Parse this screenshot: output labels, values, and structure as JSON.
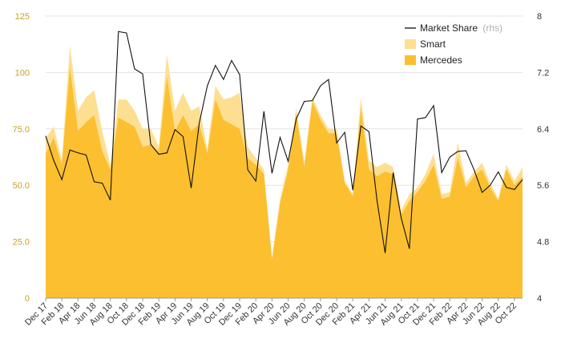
{
  "chart_data": {
    "type": "area",
    "title": "",
    "xlabel": "",
    "ylabel": "",
    "ylim": [
      0,
      125
    ],
    "y2lim": [
      4,
      8
    ],
    "y_ticks": [
      "0",
      "25.0",
      "50.0",
      "75.0",
      "100",
      "125"
    ],
    "y2_ticks": [
      "4",
      "4.8",
      "5.6",
      "6.4",
      "7.2",
      "8"
    ],
    "y_tick_values": [
      0,
      25,
      50,
      75,
      100,
      125
    ],
    "y2_tick_values": [
      4,
      4.8,
      5.6,
      6.4,
      7.2,
      8
    ],
    "x_tick_labels": [
      "Dec 17",
      "Feb 18",
      "Apr 18",
      "Jun 18",
      "Aug 18",
      "Oct 18",
      "Dec 18",
      "Feb 19",
      "Apr 19",
      "Jun 19",
      "Aug 19",
      "Oct 19",
      "Dec 19",
      "Feb 20",
      "Apr 20",
      "Jun 20",
      "Aug 20",
      "Oct 20",
      "Dec 20",
      "Feb 21",
      "Apr 21",
      "Jun 21",
      "Aug 21",
      "Oct 21",
      "Dec 21",
      "Feb 22",
      "Apr 22",
      "Jun 22",
      "Aug 22",
      "Oct 22"
    ],
    "legend": {
      "position": "top-right",
      "entries": [
        {
          "label": "Market Share",
          "suffix": "(rhs)",
          "kind": "line"
        },
        {
          "label": "Smart",
          "kind": "area"
        },
        {
          "label": "Mercedes",
          "kind": "area"
        }
      ]
    },
    "colors": {
      "mercedes": "#fbbf30",
      "smart": "#fddf92",
      "market_share": "#111111",
      "right_axis_tick": "#c9a022",
      "left_axis_tick": "#333333"
    },
    "series": [
      {
        "name": "Mercedes",
        "axis": "left",
        "values": [
          64,
          71,
          59,
          102,
          74,
          78,
          81,
          65,
          57,
          80,
          78,
          76,
          67,
          68,
          65,
          98,
          74,
          81,
          74,
          77,
          64,
          88,
          79,
          77,
          75,
          62,
          59,
          55,
          17,
          42,
          57,
          82,
          58,
          87,
          79,
          73,
          73,
          51,
          45,
          84,
          57,
          54,
          56,
          55,
          37,
          43,
          47,
          52,
          59,
          44,
          45,
          62,
          49,
          54,
          57,
          49,
          43,
          57,
          50,
          54
        ]
      },
      {
        "name": "Smart",
        "axis": "left",
        "values": [
          7,
          5,
          2,
          10,
          9,
          11,
          11,
          9,
          2,
          8,
          10,
          7,
          8,
          7,
          2,
          10,
          9,
          10,
          9,
          8,
          2,
          6,
          9,
          12,
          16,
          5,
          3,
          2,
          1,
          2,
          2,
          2,
          2,
          2,
          2,
          2,
          2,
          1,
          1,
          5,
          4,
          4,
          4,
          3,
          2,
          3,
          2,
          3,
          5,
          2,
          2,
          7,
          2,
          2,
          3,
          2,
          1,
          2,
          2,
          4
        ]
      },
      {
        "name": "Market Share",
        "axis": "right",
        "values": [
          6.3,
          5.95,
          5.68,
          6.1,
          6.06,
          6.03,
          5.65,
          5.63,
          5.39,
          7.78,
          7.76,
          7.25,
          7.18,
          6.18,
          6.04,
          6.06,
          6.39,
          6.29,
          5.56,
          6.48,
          7.01,
          7.3,
          7.1,
          7.37,
          7.17,
          5.82,
          5.66,
          6.65,
          5.77,
          6.28,
          5.94,
          6.54,
          6.79,
          6.8,
          7.01,
          7.1,
          6.2,
          6.35,
          5.53,
          6.44,
          6.36,
          5.38,
          4.64,
          5.78,
          5.13,
          4.7,
          6.54,
          6.56,
          6.73,
          5.78,
          6.0,
          6.08,
          6.09,
          5.82,
          5.5,
          5.6,
          5.79,
          5.57,
          5.54,
          5.68
        ]
      }
    ]
  }
}
